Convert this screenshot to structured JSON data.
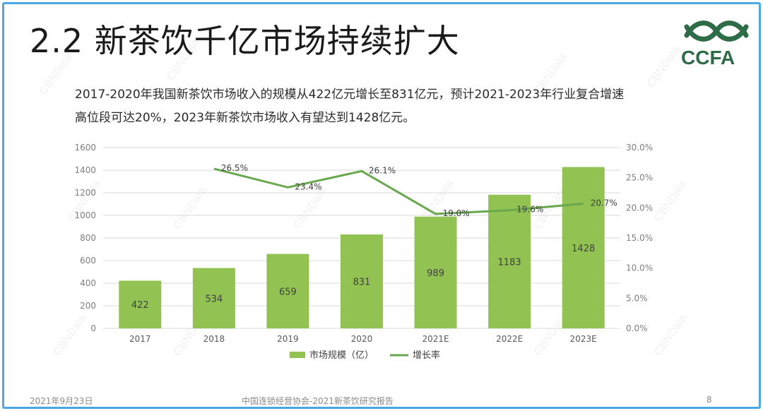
{
  "slide": {
    "title": "2.2 新茶饮千亿市场持续扩大",
    "logo_text": "CCFA",
    "description": [
      "2017-2020年我国新茶饮市场收入的规模从422亿元增长至831亿元，预计2021-2023年行业复合增速",
      "高位段可达20%，2023年新茶饮市场收入有望达到1428亿元。"
    ],
    "watermark": "CBNData",
    "footer": {
      "date": "2021年9月23日",
      "source": "中国连锁经营协会-2021新茶饮研究报告",
      "page": "8"
    }
  },
  "colors": {
    "bar": "#92c352",
    "line": "#6aa84f",
    "accent_border": "#4aa8e6",
    "logo": "#2e6b47"
  },
  "chart_data": {
    "type": "bar",
    "categories": [
      "2017",
      "2018",
      "2019",
      "2020",
      "2021E",
      "2022E",
      "2023E"
    ],
    "series": [
      {
        "name": "市场规模（亿）",
        "type": "bar",
        "axis": "left",
        "values": [
          422,
          534,
          659,
          831,
          989,
          1183,
          1428
        ],
        "labels": [
          "422",
          "534",
          "659",
          "831",
          "989",
          "1183",
          "1428"
        ]
      },
      {
        "name": "增长率",
        "type": "line",
        "axis": "right",
        "values": [
          null,
          26.5,
          23.4,
          26.1,
          19.0,
          19.6,
          20.7
        ],
        "labels": [
          "",
          "26.5%",
          "23.4%",
          "26.1%",
          "19.0%",
          "19.6%",
          "20.7%"
        ]
      }
    ],
    "y_left": {
      "ylim": [
        0,
        1600
      ],
      "ticks": [
        "0",
        "200",
        "400",
        "600",
        "800",
        "1000",
        "1200",
        "1400",
        "1600"
      ]
    },
    "y_right": {
      "ylim": [
        0,
        30
      ],
      "ticks": [
        "0.0%",
        "5.0%",
        "10.0%",
        "15.0%",
        "20.0%",
        "25.0%",
        "30.0%"
      ]
    },
    "grid": true,
    "legend": "bottom"
  }
}
